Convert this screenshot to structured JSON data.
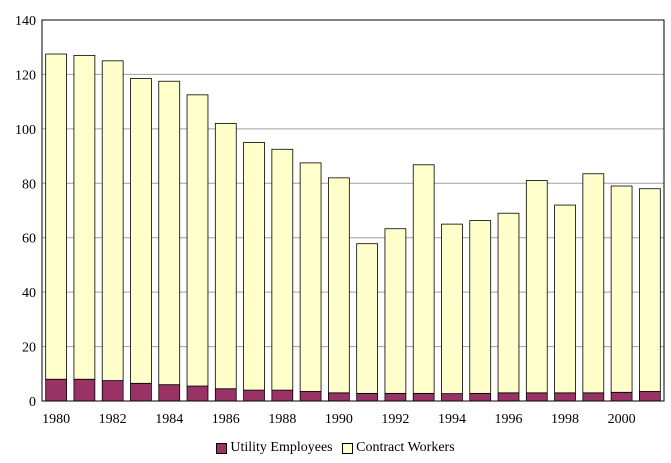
{
  "chart_data": {
    "type": "bar",
    "stacked": true,
    "title": "",
    "xlabel": "",
    "ylabel": "",
    "ylim": [
      0,
      140
    ],
    "yticks": [
      0,
      20,
      40,
      60,
      80,
      100,
      120,
      140
    ],
    "grid": true,
    "legend_position": "bottom",
    "categories": [
      "1980",
      "1981",
      "1982",
      "1983",
      "1984",
      "1985",
      "1986",
      "1987",
      "1988",
      "1989",
      "1990",
      "1991",
      "1992",
      "1993",
      "1994",
      "1995",
      "1996",
      "1997",
      "1998",
      "1999",
      "2000",
      "2001"
    ],
    "xtick_labels": [
      "1980",
      "",
      "1982",
      "",
      "1984",
      "",
      "1986",
      "",
      "1988",
      "",
      "1990",
      "",
      "1992",
      "",
      "1994",
      "",
      "1996",
      "",
      "1998",
      "",
      "2000",
      ""
    ],
    "series": [
      {
        "name": "Utility Employees",
        "color": "#993366",
        "values": [
          8,
          8,
          7.5,
          6.5,
          6,
          5.5,
          4.5,
          4,
          4,
          3.5,
          3,
          2.8,
          2.8,
          2.8,
          2.7,
          2.8,
          3,
          3,
          3,
          3,
          3.2,
          3.5
        ]
      },
      {
        "name": "Contract Workers",
        "color": "#ffffcc",
        "values": [
          119.5,
          119,
          117.5,
          112,
          111.5,
          107,
          97.5,
          91,
          88.5,
          84,
          79,
          55,
          60.5,
          84,
          62.3,
          63.5,
          66,
          78,
          69,
          80.5,
          75.8,
          74.5
        ]
      }
    ]
  }
}
